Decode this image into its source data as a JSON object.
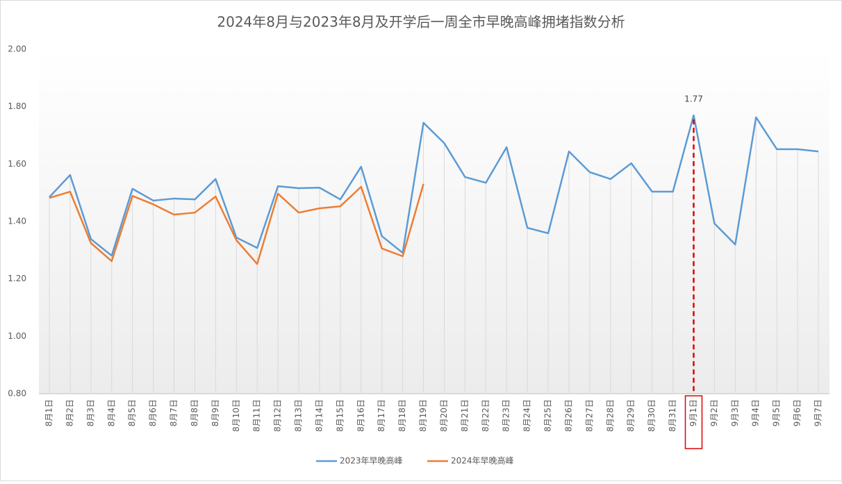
{
  "chart_data": {
    "type": "line",
    "title": "2024年8月与2023年8月及开学后一周全市早晚高峰拥堵指数分析",
    "categories": [
      "8月1日",
      "8月2日",
      "8月3日",
      "8月4日",
      "8月5日",
      "8月6日",
      "8月7日",
      "8月8日",
      "8月9日",
      "8月10日",
      "8月11日",
      "8月12日",
      "8月13日",
      "8月14日",
      "8月15日",
      "8月16日",
      "8月17日",
      "8月18日",
      "8月19日",
      "8月20日",
      "8月21日",
      "8月22日",
      "8月23日",
      "8月24日",
      "8月25日",
      "8月26日",
      "8月27日",
      "8月28日",
      "8月29日",
      "8月30日",
      "8月31日",
      "9月1日",
      "9月2日",
      "9月3日",
      "9月4日",
      "9月5日",
      "9月6日",
      "9月7日"
    ],
    "series": [
      {
        "name": "2023年早晚高峰",
        "color": "#5b9bd5",
        "values": [
          1.485,
          1.562,
          1.339,
          1.281,
          1.514,
          1.473,
          1.48,
          1.477,
          1.548,
          1.344,
          1.308,
          1.523,
          1.516,
          1.518,
          1.477,
          1.591,
          1.349,
          1.291,
          1.744,
          1.673,
          1.555,
          1.535,
          1.659,
          1.378,
          1.359,
          1.644,
          1.572,
          1.548,
          1.603,
          1.504,
          1.504,
          1.77,
          1.393,
          1.32,
          1.763,
          1.652,
          1.652,
          1.644
        ],
        "value_labels": [
          null,
          null,
          null,
          null,
          null,
          null,
          null,
          null,
          null,
          null,
          null,
          null,
          null,
          null,
          null,
          null,
          null,
          null,
          null,
          null,
          null,
          null,
          null,
          null,
          null,
          null,
          null,
          null,
          null,
          null,
          null,
          "1.77",
          null,
          null,
          null,
          null,
          null,
          null
        ]
      },
      {
        "name": "2024年早晚高峰",
        "color": "#ed7d31",
        "values": [
          1.482,
          1.504,
          1.325,
          1.262,
          1.489,
          1.46,
          1.424,
          1.431,
          1.487,
          1.335,
          1.252,
          1.497,
          1.431,
          1.446,
          1.453,
          1.521,
          1.306,
          1.279,
          1.531,
          null,
          null,
          null,
          null,
          null,
          null,
          null,
          null,
          null,
          null,
          null,
          null,
          null,
          null,
          null,
          null,
          null,
          null,
          null
        ]
      }
    ],
    "ylim": [
      0.8,
      2.0
    ],
    "yticks": [
      {
        "value": 0.8,
        "label": "0.80"
      },
      {
        "value": 1.0,
        "label": "1.00"
      },
      {
        "value": 1.2,
        "label": "1.20"
      },
      {
        "value": 1.4,
        "label": "1.40"
      },
      {
        "value": 1.6,
        "label": "1.60"
      },
      {
        "value": 1.8,
        "label": "1.80"
      },
      {
        "value": 2.0,
        "label": "2.00"
      }
    ],
    "legend": "bottom"
  }
}
